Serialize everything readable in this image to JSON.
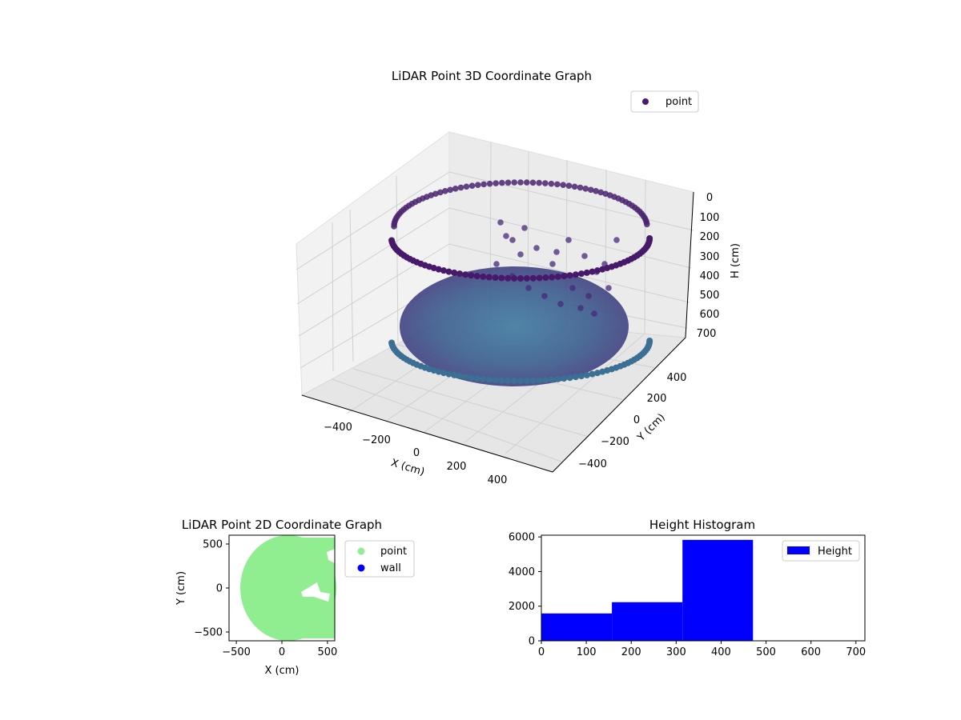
{
  "chart_data": [
    {
      "type": "scatter3d",
      "title": "LiDAR Point 3D Coordinate Graph",
      "xlabel": "X (cm)",
      "ylabel": "Y (cm)",
      "zlabel": "H (cm)",
      "xticks": [
        "−400",
        "−200",
        "0",
        "200",
        "400"
      ],
      "yticks": [
        "−400",
        "−200",
        "0",
        "200",
        "400"
      ],
      "zticks": [
        "0",
        "100",
        "200",
        "300",
        "400",
        "500",
        "600",
        "700"
      ],
      "legend": [
        {
          "label": "point",
          "color": "#440154"
        }
      ],
      "colormap": "viridis"
    },
    {
      "type": "scatter",
      "title": "LiDAR Point 2D Coordinate Graph",
      "xlabel": "X (cm)",
      "ylabel": "Y (cm)",
      "xticks": [
        -500,
        0,
        500
      ],
      "yticks": [
        -500,
        0,
        500
      ],
      "xlim": [
        -580,
        580
      ],
      "ylim": [
        -600,
        600
      ],
      "legend": [
        {
          "label": "point",
          "color": "#90ee90"
        },
        {
          "label": "wall",
          "color": "#0000ff"
        }
      ]
    },
    {
      "type": "bar",
      "title": "Height Histogram",
      "bins": [
        {
          "x0": 0,
          "x1": 157,
          "count": 1580
        },
        {
          "x0": 157,
          "x1": 314,
          "count": 2230
        },
        {
          "x0": 314,
          "x1": 471,
          "count": 5830
        }
      ],
      "xticks": [
        0,
        100,
        200,
        300,
        400,
        500,
        600,
        700
      ],
      "yticks": [
        0,
        2000,
        4000,
        6000
      ],
      "xlim": [
        0,
        720
      ],
      "ylim": [
        0,
        6100
      ],
      "color": "#0000ff",
      "legend": [
        {
          "label": "Height",
          "color": "#0000ff"
        }
      ]
    }
  ]
}
